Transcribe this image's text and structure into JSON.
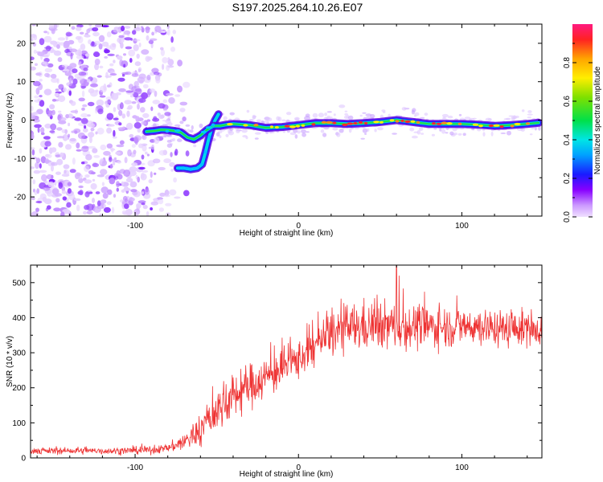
{
  "title": "S197.2025.264.10.26.E07",
  "chart_data": [
    {
      "type": "heatmap",
      "name": "spectrogram",
      "xlabel": "Height of straight line (km)",
      "ylabel": "Frequency (Hz)",
      "xlim": [
        -164,
        149
      ],
      "ylim": [
        -25,
        25
      ],
      "xticks": [
        -100,
        0,
        100
      ],
      "yticks": [
        -20,
        -10,
        0,
        10,
        20
      ],
      "colorbar": {
        "label": "Normalized spectral amplitude",
        "range": [
          0,
          1
        ],
        "ticks": [
          0.0,
          0.2,
          0.4,
          0.6,
          0.8
        ],
        "tick_labels": [
          "0.0",
          "0.2",
          "0.4",
          "0.6",
          "0.8"
        ],
        "colormap": [
          "#f0e0ff",
          "#cc99ff",
          "#8800ff",
          "#1a1aff",
          "#00a0ff",
          "#00e5e5",
          "#00e04a",
          "#7ee000",
          "#ffee00",
          "#ffa500",
          "#ff2222",
          "#ff1a80"
        ]
      },
      "noise_region_km": [
        -164,
        -80
      ],
      "main_track": [
        [
          -93,
          -3
        ],
        [
          -88,
          -2.8
        ],
        [
          -84,
          -2.5
        ],
        [
          -80,
          -2.6
        ],
        [
          -76,
          -2.8
        ],
        [
          -72,
          -3.2
        ],
        [
          -68,
          -4.5
        ],
        [
          -64,
          -5
        ],
        [
          -60,
          -4
        ],
        [
          -56,
          -2.5
        ],
        [
          -52,
          -1.5
        ],
        [
          -48,
          -1.5
        ],
        [
          -44,
          -1.2
        ],
        [
          -40,
          -1.0
        ],
        [
          -30,
          -1.3
        ],
        [
          -20,
          -2.0
        ],
        [
          -10,
          -1.8
        ],
        [
          0,
          -1.3
        ],
        [
          10,
          -0.8
        ],
        [
          20,
          -0.8
        ],
        [
          30,
          -1.0
        ],
        [
          40,
          -0.8
        ],
        [
          50,
          -0.5
        ],
        [
          60,
          0.0
        ],
        [
          70,
          -0.5
        ],
        [
          80,
          -1.0
        ],
        [
          90,
          -1.0
        ],
        [
          100,
          -1.0
        ],
        [
          110,
          -1.2
        ],
        [
          120,
          -1.5
        ],
        [
          130,
          -1.3
        ],
        [
          140,
          -1.0
        ],
        [
          147,
          -0.7
        ]
      ],
      "secondary_track": [
        [
          -74,
          -12.5
        ],
        [
          -70,
          -12.5
        ],
        [
          -66,
          -12.8
        ],
        [
          -62,
          -12.5
        ],
        [
          -59,
          -11.5
        ],
        [
          -57,
          -8.5
        ],
        [
          -55,
          -5
        ],
        [
          -53,
          -2
        ],
        [
          -51,
          0
        ],
        [
          -49,
          1.5
        ]
      ]
    },
    {
      "type": "line",
      "name": "snr",
      "xlabel": "Height of straight line (km)",
      "ylabel": "SNR (10 * v/v)",
      "xlim": [
        -164,
        149
      ],
      "ylim": [
        0,
        550
      ],
      "xticks": [
        -100,
        0,
        100
      ],
      "yticks": [
        0,
        100,
        200,
        300,
        400,
        500
      ],
      "color": "#ee3333",
      "trend": [
        [
          -164,
          20
        ],
        [
          -140,
          20
        ],
        [
          -110,
          20
        ],
        [
          -90,
          22
        ],
        [
          -80,
          28
        ],
        [
          -70,
          45
        ],
        [
          -60,
          80
        ],
        [
          -50,
          135
        ],
        [
          -40,
          175
        ],
        [
          -30,
          205
        ],
        [
          -20,
          230
        ],
        [
          -10,
          255
        ],
        [
          0,
          280
        ],
        [
          10,
          320
        ],
        [
          20,
          355
        ],
        [
          30,
          370
        ],
        [
          40,
          375
        ],
        [
          50,
          380
        ],
        [
          60,
          375
        ],
        [
          70,
          375
        ],
        [
          80,
          375
        ],
        [
          90,
          375
        ],
        [
          100,
          375
        ],
        [
          110,
          375
        ],
        [
          120,
          370
        ],
        [
          130,
          368
        ],
        [
          140,
          370
        ],
        [
          149,
          372
        ]
      ],
      "noise_amplitude": [
        [
          -164,
          8
        ],
        [
          -80,
          10
        ],
        [
          -70,
          25
        ],
        [
          -55,
          50
        ],
        [
          -40,
          60
        ],
        [
          -20,
          55
        ],
        [
          0,
          50
        ],
        [
          20,
          60
        ],
        [
          40,
          65
        ],
        [
          60,
          60
        ],
        [
          100,
          50
        ],
        [
          149,
          45
        ]
      ],
      "max_value": 550,
      "max_at_km": 60
    }
  ]
}
